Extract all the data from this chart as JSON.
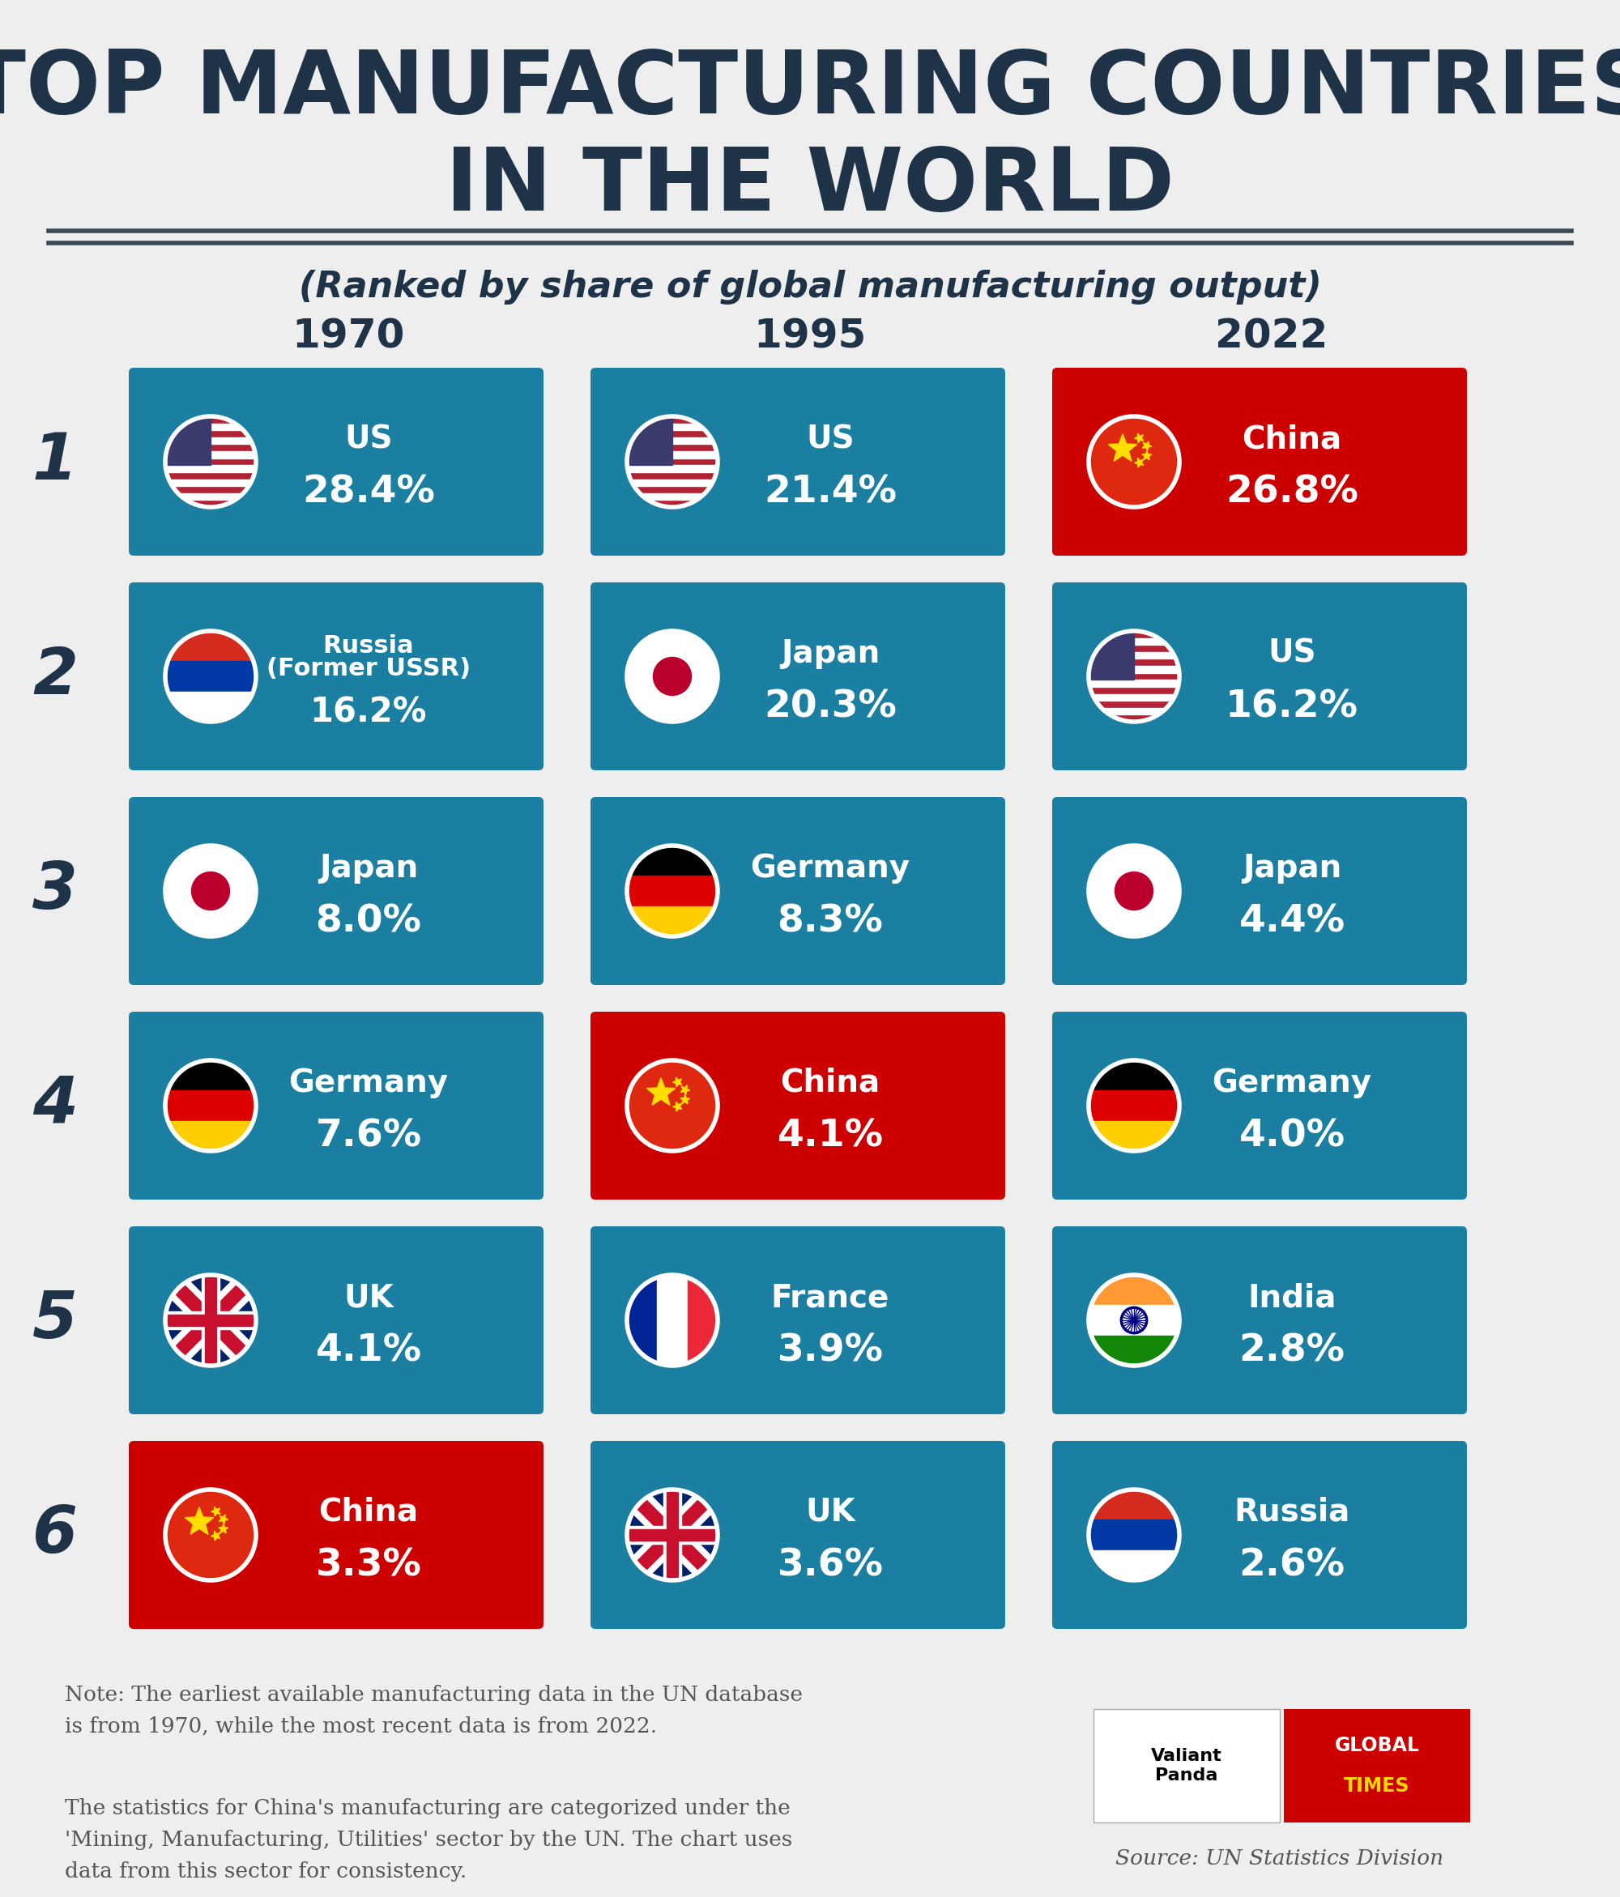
{
  "title_line1": "TOP MANUFACTURING COUNTRIES",
  "title_line2": "IN THE WORLD",
  "subtitle": "(Ranked by share of global manufacturing output)",
  "bg_color": "#eeeeee",
  "title_color": "#1e3347",
  "years": [
    "1970",
    "1995",
    "2022"
  ],
  "ranks": [
    1,
    2,
    3,
    4,
    5,
    6
  ],
  "data": {
    "1970": [
      {
        "country": "US",
        "value": "28.4%",
        "color": "#1a7fa0",
        "highlight": false
      },
      {
        "country": "Russia\n(Former USSR)",
        "value": "16.2%",
        "color": "#1a7fa0",
        "highlight": false
      },
      {
        "country": "Japan",
        "value": "8.0%",
        "color": "#1a7fa0",
        "highlight": false
      },
      {
        "country": "Germany",
        "value": "7.6%",
        "color": "#1a7fa0",
        "highlight": false
      },
      {
        "country": "UK",
        "value": "4.1%",
        "color": "#1a7fa0",
        "highlight": false
      },
      {
        "country": "China",
        "value": "3.3%",
        "color": "#cc0000",
        "highlight": true
      }
    ],
    "1995": [
      {
        "country": "US",
        "value": "21.4%",
        "color": "#1a7fa0",
        "highlight": false
      },
      {
        "country": "Japan",
        "value": "20.3%",
        "color": "#1a7fa0",
        "highlight": false
      },
      {
        "country": "Germany",
        "value": "8.3%",
        "color": "#1a7fa0",
        "highlight": false
      },
      {
        "country": "China",
        "value": "4.1%",
        "color": "#cc0000",
        "highlight": true
      },
      {
        "country": "France",
        "value": "3.9%",
        "color": "#1a7fa0",
        "highlight": false
      },
      {
        "country": "UK",
        "value": "3.6%",
        "color": "#1a7fa0",
        "highlight": false
      }
    ],
    "2022": [
      {
        "country": "China",
        "value": "26.8%",
        "color": "#cc0000",
        "highlight": true
      },
      {
        "country": "US",
        "value": "16.2%",
        "color": "#1a7fa0",
        "highlight": false
      },
      {
        "country": "Japan",
        "value": "4.4%",
        "color": "#1a7fa0",
        "highlight": false
      },
      {
        "country": "Germany",
        "value": "4.0%",
        "color": "#1a7fa0",
        "highlight": false
      },
      {
        "country": "India",
        "value": "2.8%",
        "color": "#1a7fa0",
        "highlight": false
      },
      {
        "country": "Russia",
        "value": "2.6%",
        "color": "#1a7fa0",
        "highlight": false
      }
    ]
  },
  "flag_map": {
    "US": "us",
    "Russia\n(Former USSR)": "russia",
    "Russia": "russia",
    "Japan": "japan",
    "Germany": "germany",
    "UK": "uk",
    "China": "china",
    "France": "france",
    "India": "india"
  },
  "note1": "Note: The earliest available manufacturing data in the UN database\nis from 1970, while the most recent data is from 2022.",
  "note2": "The statistics for China's manufacturing are categorized under the\n'Mining, Manufacturing, Utilities' sector by the UN. The chart uses\ndata from this sector for consistency.",
  "source": "Source: UN Statistics Division"
}
